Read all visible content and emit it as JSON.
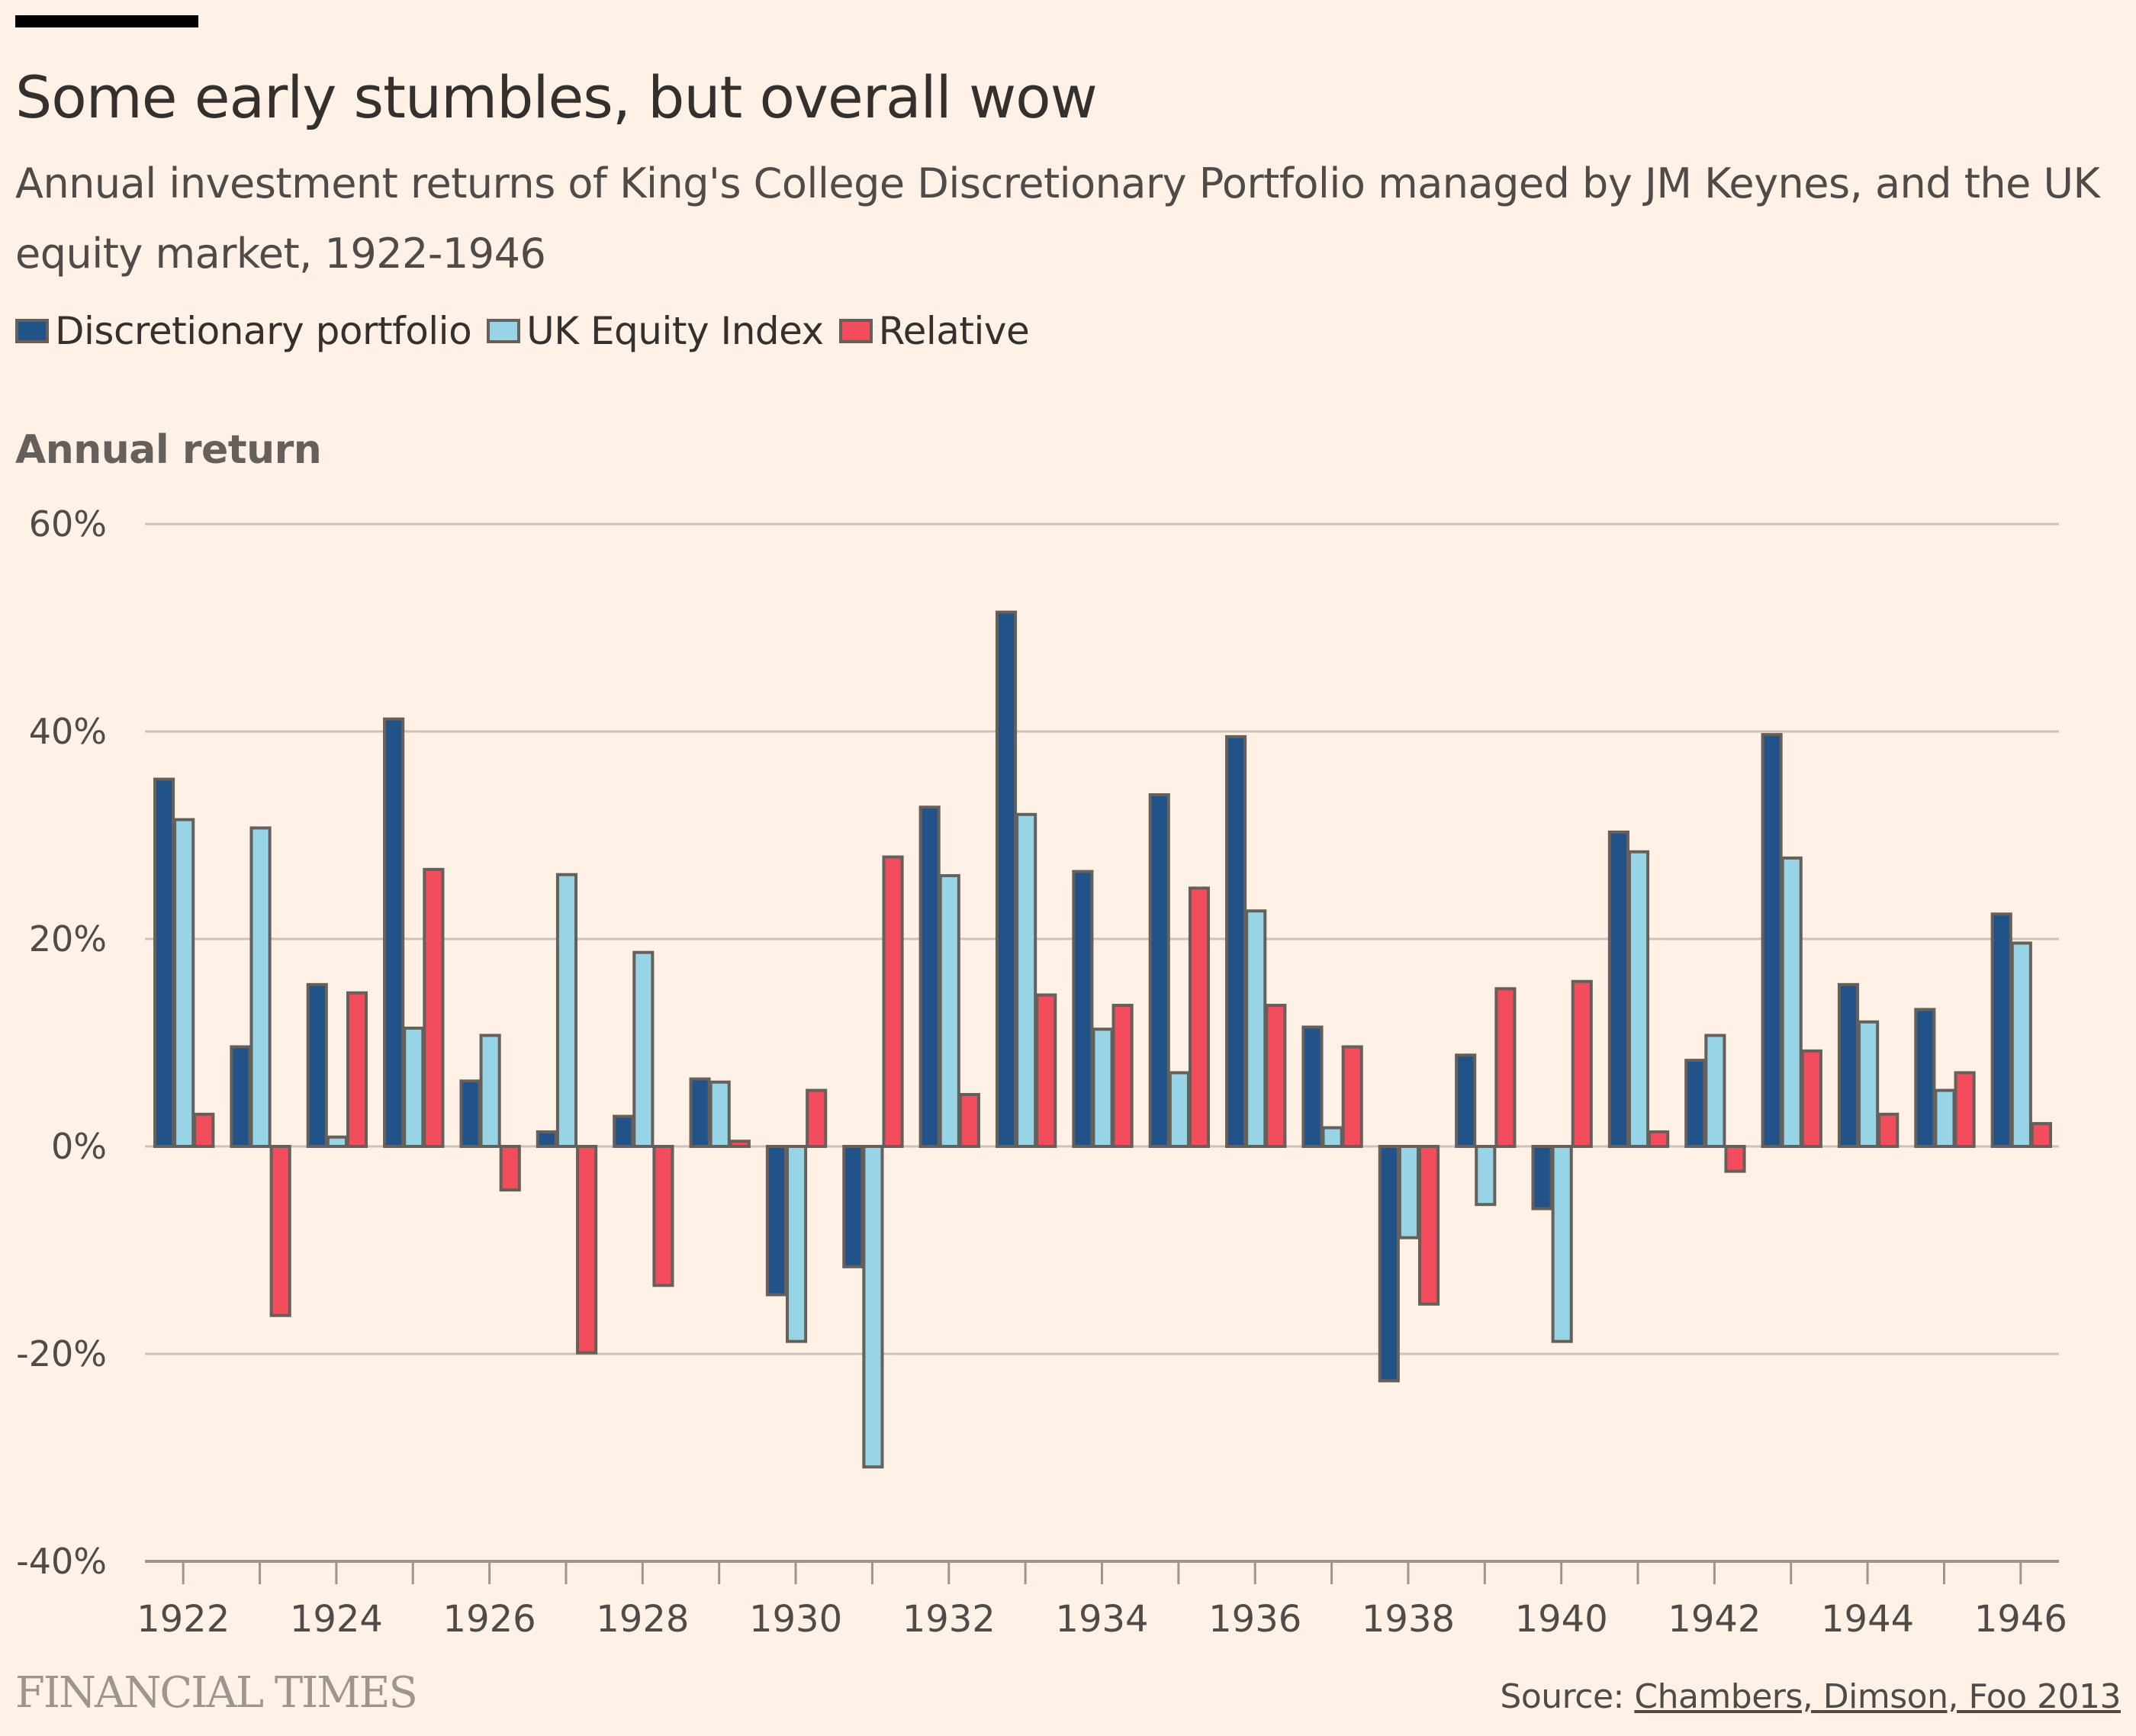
{
  "header": {
    "title": "Some early stumbles, but overall wow",
    "subtitle": "Annual investment returns of King's College Discretionary Portfolio managed by JM Keynes, and the UK equity market, 1922-1946"
  },
  "legend": [
    {
      "label": "Discretionary portfolio",
      "color": "#215288"
    },
    {
      "label": "UK Equity Index",
      "color": "#96d4e6"
    },
    {
      "label": "Relative",
      "color": "#f24c5d"
    }
  ],
  "footer": {
    "brand": "FINANCIAL TIMES",
    "source_prefix": "Source: ",
    "source_link": "Chambers, Dimson, Foo 2013"
  },
  "chart_data": {
    "type": "bar",
    "title": "Some early stumbles, but overall wow",
    "subtitle": "Annual investment returns of King's College Discretionary Portfolio managed by JM Keynes, and the UK equity market, 1922-1946",
    "xlabel": "",
    "ylabel": "Annual return",
    "ylim": [
      -40,
      60
    ],
    "yticks": [
      -40,
      -20,
      0,
      20,
      40,
      60
    ],
    "ytick_labels": [
      "-40%",
      "-20%",
      "0%",
      "20%",
      "40%",
      "60%"
    ],
    "xtick_labels": [
      "1922",
      "1924",
      "1926",
      "1928",
      "1930",
      "1932",
      "1934",
      "1936",
      "1938",
      "1940",
      "1942",
      "1944",
      "1946"
    ],
    "grid": true,
    "legend_position": "top-left",
    "categories": [
      "1922",
      "1923",
      "1924",
      "1925",
      "1926",
      "1927",
      "1928",
      "1929",
      "1930",
      "1931",
      "1932",
      "1933",
      "1934",
      "1935",
      "1936",
      "1937",
      "1938",
      "1939",
      "1940",
      "1941",
      "1942",
      "1943",
      "1944",
      "1945",
      "1946"
    ],
    "series": [
      {
        "name": "Discretionary portfolio",
        "color": "#215288",
        "values": [
          35.4,
          9.6,
          15.6,
          41.2,
          6.3,
          1.4,
          2.9,
          6.5,
          -14.3,
          -11.6,
          32.7,
          51.5,
          26.5,
          33.9,
          39.5,
          11.5,
          -22.6,
          8.8,
          -6.0,
          30.3,
          8.3,
          39.7,
          15.6,
          13.2,
          22.4
        ]
      },
      {
        "name": "UK Equity Index",
        "color": "#96d4e6",
        "values": [
          31.5,
          30.7,
          0.9,
          11.4,
          10.7,
          26.2,
          18.7,
          6.2,
          -18.8,
          -30.9,
          26.1,
          32.0,
          11.3,
          7.1,
          22.7,
          1.8,
          -8.8,
          -5.6,
          -18.8,
          28.4,
          10.7,
          27.8,
          12.0,
          5.4,
          19.6
        ]
      },
      {
        "name": "Relative",
        "color": "#f24c5d",
        "values": [
          3.1,
          -16.3,
          14.8,
          26.7,
          -4.2,
          -19.9,
          -13.4,
          0.5,
          5.4,
          27.9,
          5.0,
          14.6,
          13.6,
          24.9,
          13.6,
          9.6,
          -15.2,
          15.2,
          15.9,
          1.4,
          -2.4,
          9.2,
          3.1,
          7.1,
          2.2
        ]
      }
    ]
  }
}
